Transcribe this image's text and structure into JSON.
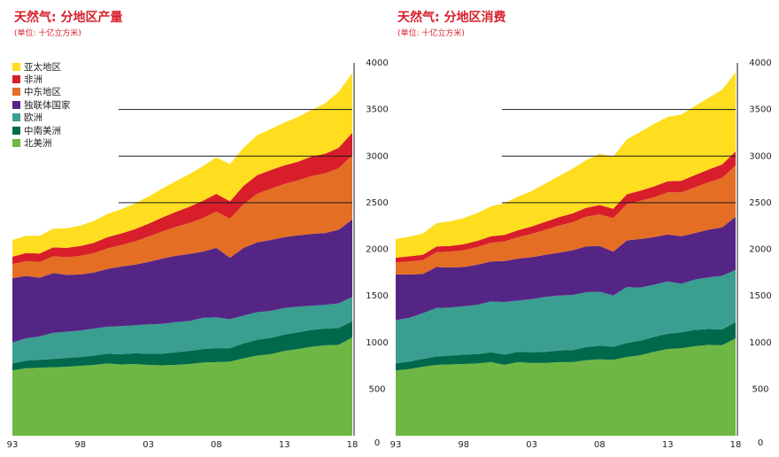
{
  "chart_data": [
    {
      "type": "area",
      "stacked": true,
      "title": "天然气: 分地区产量",
      "subtitle": "(单位: 十亿立方米)",
      "x": [
        1993,
        1994,
        1995,
        1996,
        1997,
        1998,
        1999,
        2000,
        2001,
        2002,
        2003,
        2004,
        2005,
        2006,
        2007,
        2008,
        2009,
        2010,
        2011,
        2012,
        2013,
        2014,
        2015,
        2016,
        2017,
        2018
      ],
      "x_tick_labels": [
        "93",
        "98",
        "03",
        "08",
        "13",
        "18"
      ],
      "x_tick_values": [
        1993,
        1998,
        2003,
        2008,
        2013,
        2018
      ],
      "ylim": [
        0,
        4000
      ],
      "y_ticks": [
        0,
        500,
        1000,
        1500,
        2000,
        2500,
        3000,
        3500,
        4000
      ],
      "grid": "horizontal lines at 2500, 3000, 3500",
      "legend": "top-left",
      "series": [
        {
          "name": "北美洲",
          "color": "#6fb744",
          "values": [
            700,
            725,
            730,
            735,
            740,
            750,
            760,
            775,
            765,
            770,
            760,
            755,
            760,
            770,
            785,
            790,
            795,
            830,
            860,
            875,
            910,
            930,
            955,
            970,
            975,
            1055
          ]
        },
        {
          "name": "中南美洲",
          "color": "#00694b",
          "values": [
            75,
            80,
            85,
            90,
            95,
            95,
            100,
            105,
            110,
            115,
            120,
            125,
            135,
            140,
            145,
            150,
            145,
            160,
            170,
            175,
            175,
            180,
            180,
            180,
            180,
            175
          ]
        },
        {
          "name": "欧洲",
          "color": "#3a9e91",
          "values": [
            225,
            240,
            250,
            280,
            280,
            285,
            290,
            290,
            300,
            300,
            315,
            320,
            325,
            320,
            335,
            330,
            310,
            300,
            295,
            290,
            285,
            275,
            260,
            255,
            265,
            260
          ]
        },
        {
          "name": "独联体国家",
          "color": "#552586",
          "values": [
            690,
            670,
            630,
            640,
            610,
            600,
            600,
            620,
            640,
            650,
            670,
            700,
            710,
            720,
            710,
            745,
            660,
            725,
            750,
            760,
            760,
            765,
            770,
            770,
            790,
            830
          ]
        },
        {
          "name": "中东地区",
          "color": "#e56e25",
          "values": [
            150,
            160,
            170,
            180,
            190,
            200,
            210,
            220,
            230,
            250,
            270,
            290,
            310,
            330,
            360,
            390,
            420,
            470,
            520,
            550,
            570,
            590,
            620,
            640,
            660,
            690
          ]
        },
        {
          "name": "非洲",
          "color": "#d81e2a",
          "values": [
            80,
            85,
            90,
            95,
            100,
            105,
            110,
            120,
            125,
            130,
            140,
            150,
            160,
            175,
            185,
            190,
            185,
            195,
            200,
            200,
            200,
            200,
            210,
            210,
            220,
            240
          ]
        },
        {
          "name": "亚太地区",
          "color": "#ffdd1f",
          "values": [
            180,
            185,
            190,
            200,
            210,
            220,
            235,
            250,
            260,
            275,
            290,
            310,
            330,
            350,
            370,
            390,
            400,
            410,
            430,
            440,
            460,
            480,
            500,
            540,
            600,
            640
          ]
        }
      ]
    },
    {
      "type": "area",
      "stacked": true,
      "title": "天然气: 分地区消费",
      "subtitle": "(单位: 十亿立方米)",
      "x": [
        1993,
        1994,
        1995,
        1996,
        1997,
        1998,
        1999,
        2000,
        2001,
        2002,
        2003,
        2004,
        2005,
        2006,
        2007,
        2008,
        2009,
        2010,
        2011,
        2012,
        2013,
        2014,
        2015,
        2016,
        2017,
        2018
      ],
      "x_tick_labels": [
        "93",
        "98",
        "03",
        "08",
        "13",
        "18"
      ],
      "x_tick_values": [
        1993,
        1998,
        2003,
        2008,
        2013,
        2018
      ],
      "ylim": [
        0,
        4000
      ],
      "y_ticks": [
        0,
        500,
        1000,
        1500,
        2000,
        2500,
        3000,
        3500,
        4000
      ],
      "grid": "horizontal lines at 2500, 3000, 3500",
      "series": [
        {
          "name": "北美洲",
          "color": "#6fb744",
          "values": [
            700,
            715,
            740,
            760,
            765,
            770,
            775,
            790,
            760,
            790,
            780,
            780,
            790,
            790,
            810,
            820,
            815,
            845,
            865,
            900,
            930,
            940,
            960,
            975,
            970,
            1045
          ]
        },
        {
          "name": "中南美洲",
          "color": "#00694b",
          "values": [
            75,
            80,
            85,
            90,
            95,
            100,
            100,
            105,
            110,
            110,
            115,
            120,
            125,
            130,
            140,
            145,
            140,
            150,
            155,
            160,
            165,
            170,
            175,
            170,
            170,
            175
          ]
        },
        {
          "name": "欧洲",
          "color": "#3a9e91",
          "values": [
            465,
            470,
            490,
            520,
            515,
            520,
            530,
            545,
            565,
            550,
            570,
            590,
            590,
            590,
            590,
            580,
            550,
            600,
            570,
            560,
            560,
            520,
            540,
            555,
            575,
            560
          ]
        },
        {
          "name": "独联体国家",
          "color": "#552586",
          "values": [
            490,
            465,
            420,
            440,
            430,
            420,
            430,
            430,
            440,
            450,
            450,
            450,
            460,
            480,
            490,
            490,
            470,
            500,
            520,
            510,
            505,
            510,
            500,
            510,
            520,
            570
          ]
        },
        {
          "name": "中东地区",
          "color": "#e56e25",
          "values": [
            130,
            140,
            150,
            160,
            170,
            180,
            190,
            200,
            210,
            230,
            250,
            270,
            290,
            300,
            320,
            340,
            360,
            390,
            410,
            430,
            450,
            470,
            490,
            510,
            530,
            550
          ]
        },
        {
          "name": "非洲",
          "color": "#d81e2a",
          "values": [
            50,
            55,
            55,
            60,
            60,
            65,
            65,
            70,
            70,
            75,
            80,
            85,
            90,
            95,
            95,
            100,
            100,
            105,
            110,
            115,
            120,
            125,
            130,
            135,
            145,
            150
          ]
        },
        {
          "name": "亚太地区",
          "color": "#ffdd1f",
          "values": [
            200,
            210,
            230,
            250,
            265,
            280,
            300,
            320,
            340,
            360,
            380,
            410,
            440,
            480,
            510,
            550,
            560,
            590,
            630,
            670,
            690,
            710,
            740,
            770,
            800,
            850
          ]
        }
      ]
    }
  ]
}
